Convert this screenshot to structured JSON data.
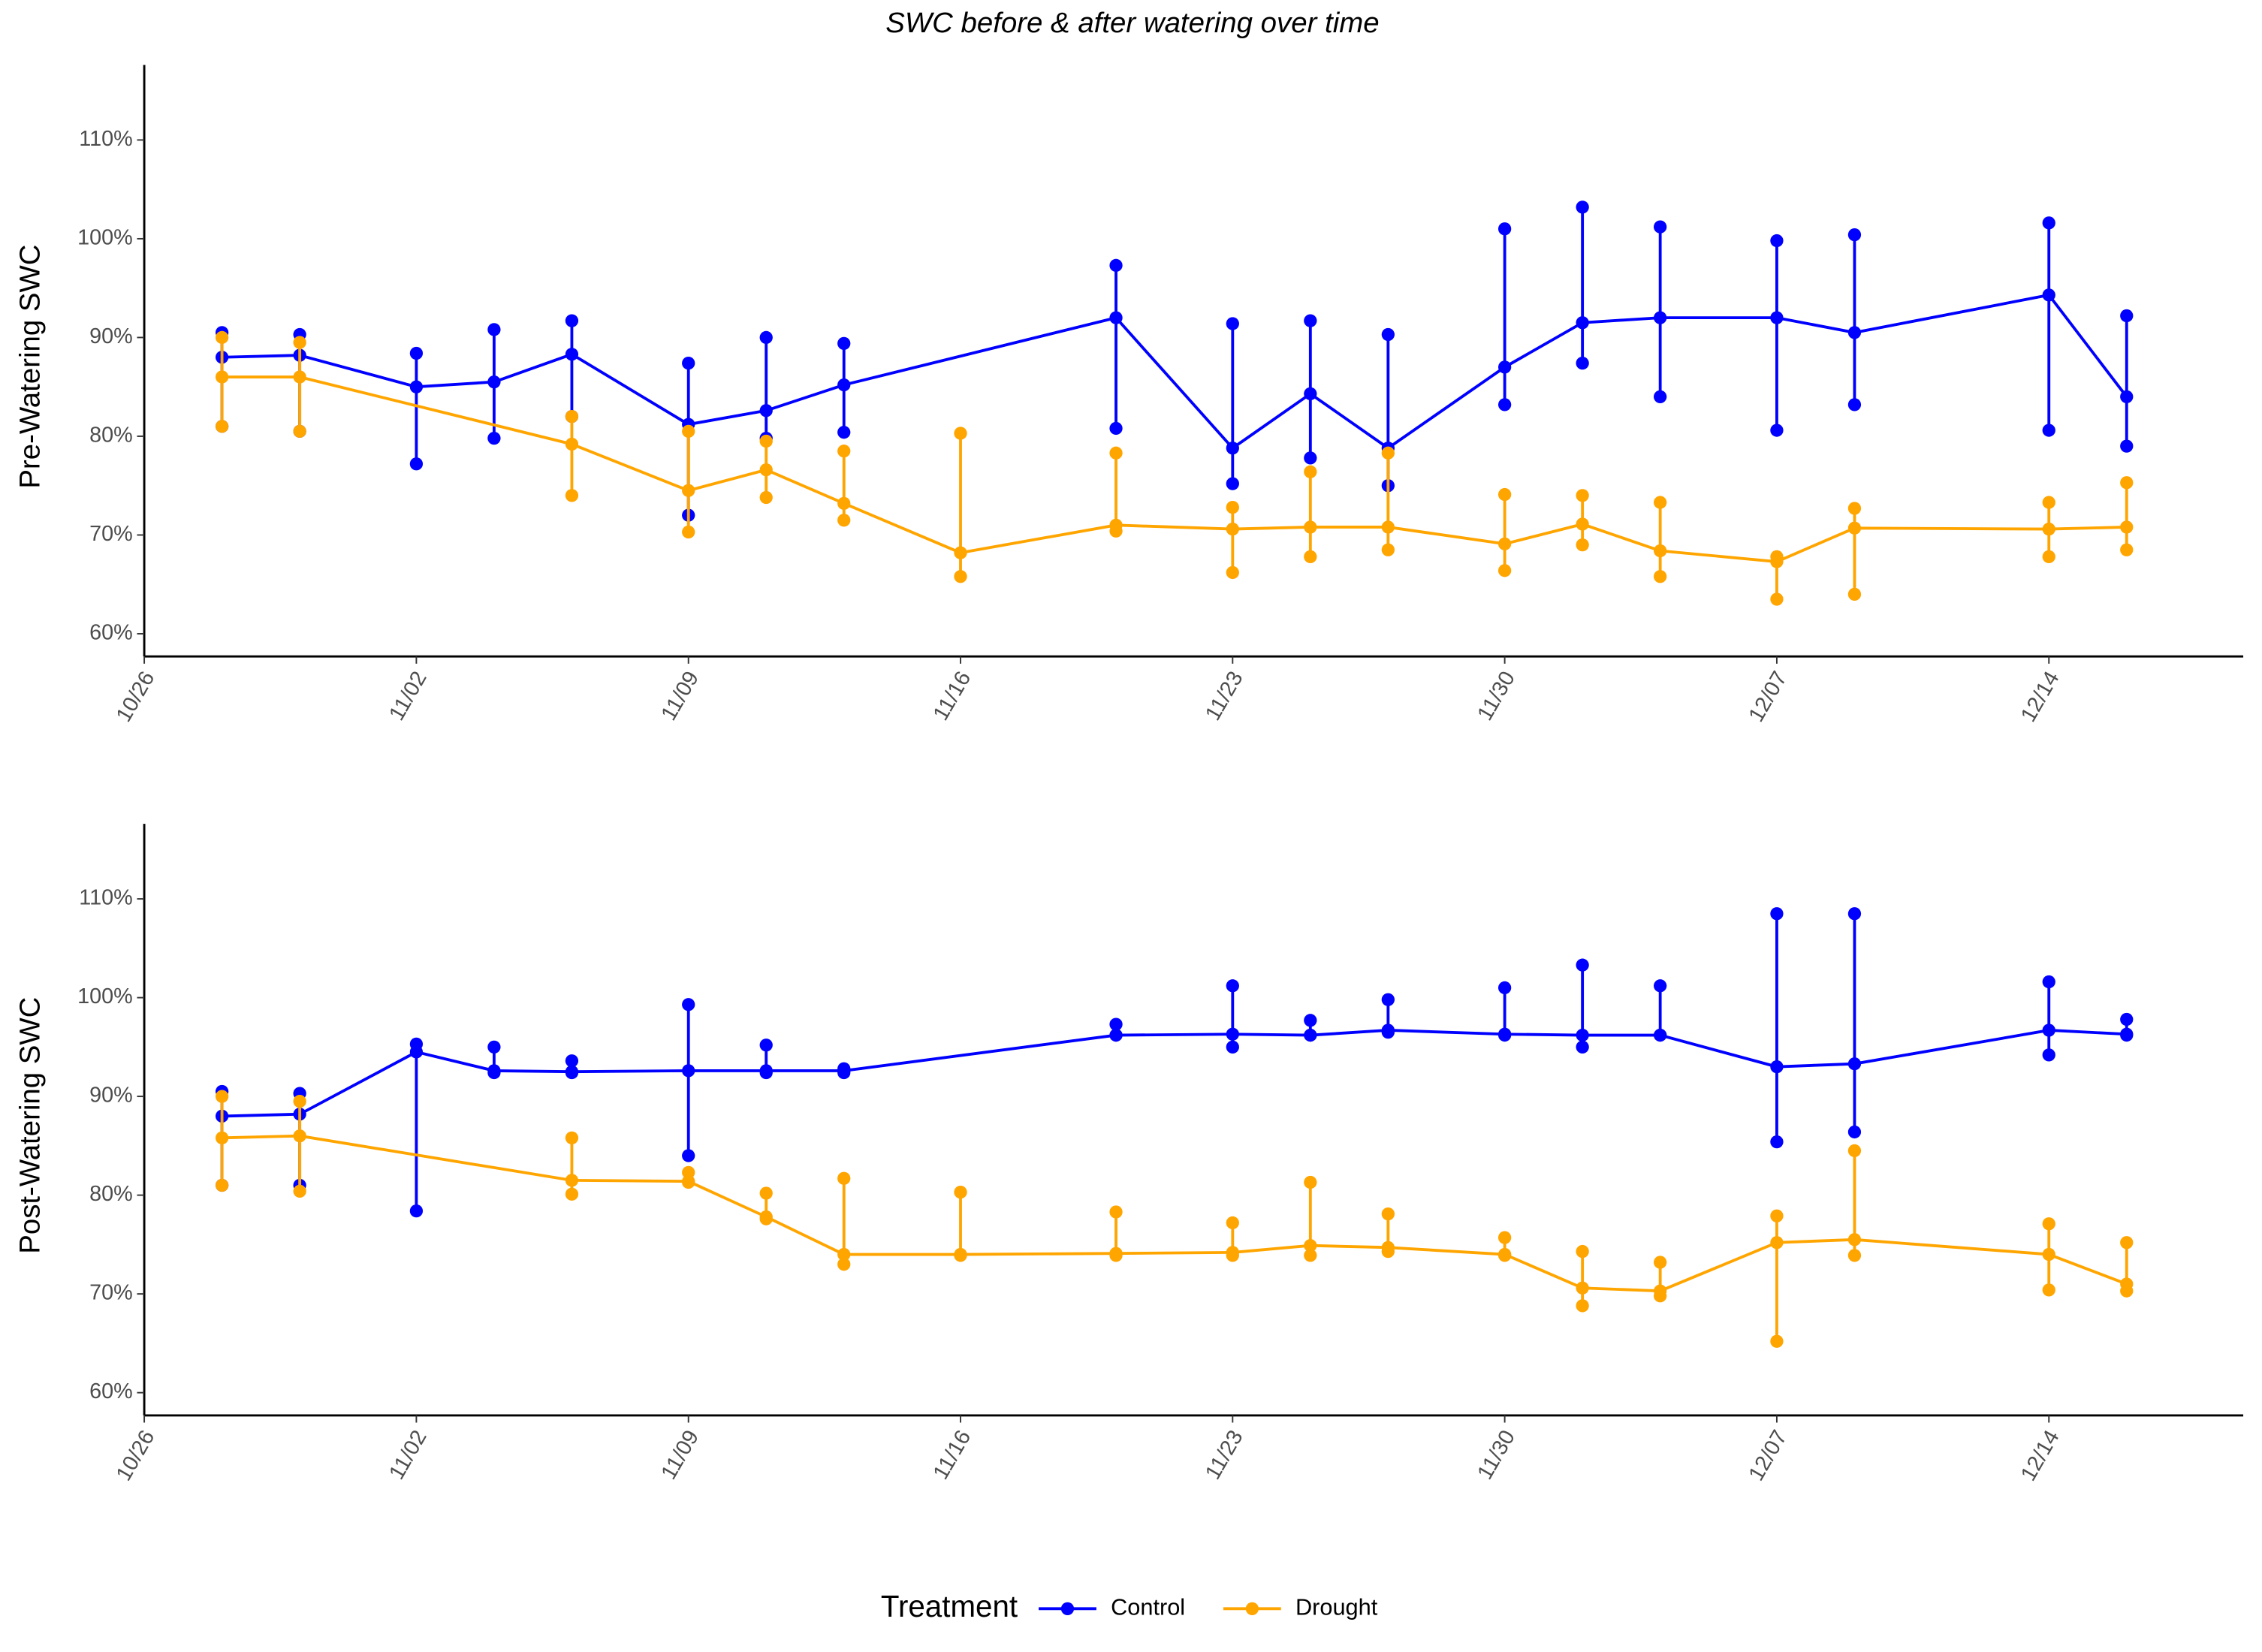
{
  "title": "SWC before & after watering over time",
  "legend": {
    "title": "Treatment"
  },
  "chart_data": [
    {
      "type": "line",
      "y_label": "Pre-Watering SWC",
      "xlim": [
        "10/26",
        "12/19"
      ],
      "xticks": [
        "10/26",
        "11/02",
        "11/09",
        "11/16",
        "11/23",
        "11/30",
        "12/07",
        "12/14"
      ],
      "ylim": [
        57.7,
        117.6
      ],
      "yticks": [
        {
          "value": 60,
          "label": "60%"
        },
        {
          "value": 70,
          "label": "70%"
        },
        {
          "value": 80,
          "label": "80%"
        },
        {
          "value": 90,
          "label": "90%"
        },
        {
          "value": 100,
          "label": "100%"
        },
        {
          "value": 110,
          "label": "110%"
        }
      ],
      "series": [
        {
          "name": "Control",
          "color": "#0000ff",
          "x": [
            "10/28",
            "10/30",
            "11/02",
            "11/04",
            "11/06",
            "11/09",
            "11/11",
            "11/13",
            "11/20",
            "11/23",
            "11/25",
            "11/27",
            "11/30",
            "12/02",
            "12/04",
            "12/07",
            "12/09",
            "12/14",
            "12/16"
          ],
          "values": [
            88,
            88.2,
            85,
            85.5,
            88.3,
            81.2,
            82.6,
            85.2,
            92,
            78.8,
            84.3,
            78.8,
            87,
            91.5,
            92,
            92,
            90.5,
            94.3,
            84
          ],
          "min": [
            81,
            80.5,
            77.2,
            79.8,
            82,
            72,
            79.8,
            80.4,
            80.8,
            75.2,
            77.8,
            75,
            83.2,
            87.4,
            84,
            80.6,
            83.2,
            80.6,
            79
          ],
          "max": [
            90.5,
            90.3,
            88.4,
            90.8,
            91.7,
            87.4,
            90,
            89.4,
            97.3,
            91.4,
            91.7,
            90.3,
            101,
            103.2,
            101.2,
            99.8,
            100.4,
            101.6,
            92.2
          ]
        },
        {
          "name": "Drought",
          "color": "#ffa500",
          "x": [
            "10/28",
            "10/30",
            "11/06",
            "11/09",
            "11/11",
            "11/13",
            "11/16",
            "11/20",
            "11/23",
            "11/25",
            "11/27",
            "11/30",
            "12/02",
            "12/04",
            "12/07",
            "12/09",
            "12/14",
            "12/16"
          ],
          "values": [
            86,
            86,
            79.2,
            74.5,
            76.6,
            73.2,
            68.2,
            71,
            70.6,
            70.8,
            70.8,
            69.1,
            71.1,
            68.4,
            67.3,
            70.7,
            70.6,
            70.8
          ],
          "min": [
            81,
            80.5,
            74,
            70.3,
            73.8,
            71.5,
            65.8,
            70.4,
            66.2,
            67.8,
            68.5,
            66.4,
            69,
            65.8,
            63.5,
            64,
            67.8,
            68.5
          ],
          "max": [
            90,
            89.5,
            82,
            80.5,
            79.5,
            78.5,
            80.3,
            78.3,
            72.8,
            76.4,
            78.3,
            74.1,
            74,
            73.3,
            67.8,
            72.7,
            73.3,
            75.3
          ]
        }
      ]
    },
    {
      "type": "line",
      "y_label": "Post-Watering SWC",
      "xlim": [
        "10/26",
        "12/19"
      ],
      "xticks": [
        "10/26",
        "11/02",
        "11/09",
        "11/16",
        "11/23",
        "11/30",
        "12/07",
        "12/14"
      ],
      "ylim": [
        57.7,
        117.6
      ],
      "yticks": [
        {
          "value": 60,
          "label": "60%"
        },
        {
          "value": 70,
          "label": "70%"
        },
        {
          "value": 80,
          "label": "80%"
        },
        {
          "value": 90,
          "label": "90%"
        },
        {
          "value": 100,
          "label": "100%"
        },
        {
          "value": 110,
          "label": "110%"
        }
      ],
      "series": [
        {
          "color": "#0000ff",
          "x": [
            "10/28",
            "10/30",
            "11/02",
            "11/04",
            "11/06",
            "11/09",
            "11/11",
            "11/13",
            "11/20",
            "11/23",
            "11/25",
            "11/27",
            "11/30",
            "12/02",
            "12/04",
            "12/07",
            "12/09",
            "12/14",
            "12/16"
          ],
          "values": [
            88,
            88.2,
            94.5,
            92.6,
            92.5,
            92.6,
            92.6,
            92.6,
            96.2,
            96.3,
            96.2,
            96.7,
            96.3,
            96.2,
            96.2,
            93,
            93.3,
            96.7,
            96.3
          ],
          "min": [
            81,
            81,
            78.4,
            92.4,
            92.4,
            84,
            92.4,
            92.4,
            96.2,
            95,
            96.2,
            96.5,
            96.2,
            95,
            96.2,
            85.4,
            86.4,
            94.2,
            96.2
          ],
          "max": [
            90.5,
            90.3,
            95.3,
            95,
            93.6,
            99.3,
            95.2,
            92.8,
            97.3,
            101.2,
            97.7,
            99.8,
            101,
            103.3,
            101.2,
            108.5,
            108.5,
            101.6,
            97.8
          ]
        },
        {
          "color": "#ffa500",
          "x": [
            "10/28",
            "10/30",
            "11/06",
            "11/09",
            "11/11",
            "11/13",
            "11/16",
            "11/20",
            "11/23",
            "11/25",
            "11/27",
            "11/30",
            "12/02",
            "12/04",
            "12/07",
            "12/09",
            "12/14",
            "12/16"
          ],
          "values": [
            85.8,
            86,
            81.5,
            81.4,
            77.8,
            74,
            74,
            74.1,
            74.2,
            74.9,
            74.7,
            74,
            70.6,
            70.3,
            75.2,
            75.5,
            74,
            71
          ],
          "min": [
            81,
            80.4,
            80.1,
            81.3,
            77.6,
            73,
            73.9,
            73.9,
            73.9,
            73.9,
            74.3,
            73.9,
            68.8,
            69.8,
            65.2,
            73.9,
            70.4,
            70.3
          ],
          "max": [
            90,
            89.5,
            85.8,
            82.3,
            80.2,
            81.7,
            80.3,
            78.3,
            77.2,
            81.3,
            78.1,
            75.7,
            74.3,
            73.2,
            77.9,
            84.5,
            77.1,
            75.2
          ]
        }
      ]
    }
  ]
}
